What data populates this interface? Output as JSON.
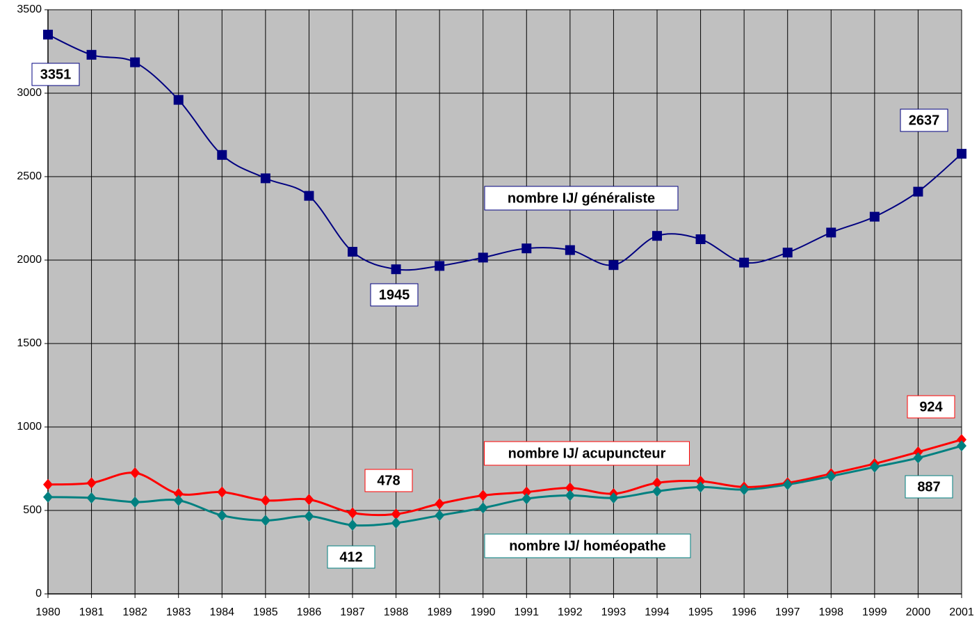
{
  "chart_data": {
    "type": "line",
    "x": [
      1980,
      1981,
      1982,
      1983,
      1984,
      1985,
      1986,
      1987,
      1988,
      1989,
      1990,
      1991,
      1992,
      1993,
      1994,
      1995,
      1996,
      1997,
      1998,
      1999,
      2000,
      2001
    ],
    "series": [
      {
        "name": "nombre IJ/ généraliste",
        "color": "#000080",
        "marker": "square",
        "values": [
          3351,
          3230,
          3185,
          2960,
          2630,
          2490,
          2385,
          2050,
          1945,
          1965,
          2015,
          2070,
          2060,
          1970,
          2145,
          2125,
          1985,
          2045,
          2165,
          2260,
          2410,
          2637
        ]
      },
      {
        "name": "nombre IJ/ acupuncteur",
        "color": "#ff0000",
        "marker": "diamond",
        "values": [
          655,
          665,
          725,
          600,
          610,
          560,
          565,
          485,
          478,
          540,
          590,
          610,
          635,
          600,
          665,
          675,
          640,
          665,
          720,
          780,
          850,
          924
        ]
      },
      {
        "name": "nombre IJ/ homéopathe",
        "color": "#008080",
        "marker": "diamond",
        "values": [
          580,
          575,
          550,
          560,
          470,
          440,
          465,
          412,
          425,
          470,
          515,
          570,
          590,
          575,
          615,
          640,
          625,
          655,
          705,
          760,
          815,
          887
        ]
      }
    ],
    "xlim": [
      1980,
      2001
    ],
    "xticks": [
      1980,
      1981,
      1982,
      1983,
      1984,
      1985,
      1986,
      1987,
      1988,
      1989,
      1990,
      1991,
      1992,
      1993,
      1994,
      1995,
      1996,
      1997,
      1998,
      1999,
      2000,
      2001
    ],
    "ylim": [
      0,
      3500
    ],
    "yticks": [
      0,
      500,
      1000,
      1500,
      2000,
      2500,
      3000,
      3500
    ],
    "grid": true
  }
}
